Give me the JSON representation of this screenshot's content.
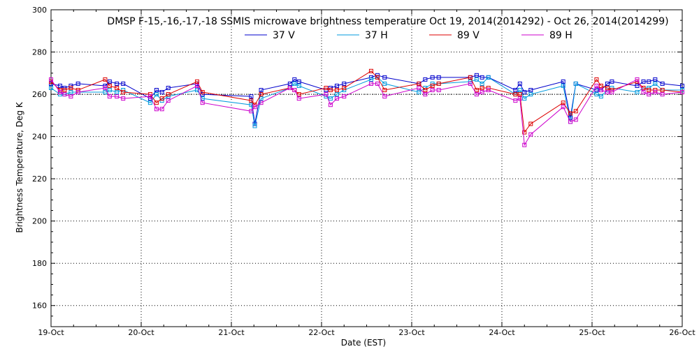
{
  "chart_data": {
    "type": "line",
    "title": "DMSP F-15,-16,-17,-18 SSMIS microwave brightness temperature Oct 19, 2014(2014292) - Oct 26, 2014(2014299)",
    "xlabel": "Date (EST)",
    "ylabel": "Brightness Temperature, Deg K",
    "xlim": [
      19,
      26
    ],
    "ylim": [
      150,
      300
    ],
    "x_tick_labels": [
      "19-Oct",
      "20-Oct",
      "21-Oct",
      "22-Oct",
      "23-Oct",
      "24-Oct",
      "25-Oct",
      "26-Oct"
    ],
    "y_ticks": [
      160,
      180,
      200,
      220,
      240,
      260,
      280,
      300
    ],
    "grid": true,
    "reference_line": 260,
    "series": [
      {
        "name": "37 V",
        "color": "#0000cc",
        "x": [
          19.0,
          19.1,
          19.15,
          19.22,
          19.3,
          19.6,
          19.65,
          19.73,
          19.8,
          20.1,
          20.17,
          20.23,
          20.3,
          20.62,
          20.68,
          21.22,
          21.26,
          21.33,
          21.65,
          21.7,
          21.75,
          22.05,
          22.1,
          22.17,
          22.25,
          22.55,
          22.62,
          22.7,
          23.08,
          23.15,
          23.23,
          23.3,
          23.65,
          23.72,
          23.78,
          23.85,
          24.15,
          24.2,
          24.25,
          24.32,
          24.68,
          24.76,
          24.82,
          25.05,
          25.1,
          25.17,
          25.22,
          25.5,
          25.57,
          25.63,
          25.7,
          25.78,
          26.0
        ],
        "values": [
          265,
          264,
          263,
          264,
          265,
          264,
          266,
          265,
          265,
          258,
          262,
          261,
          263,
          265,
          260,
          259,
          246,
          262,
          265,
          267,
          266,
          262,
          263,
          264,
          265,
          268,
          269,
          268,
          265,
          267,
          268,
          268,
          268,
          269,
          268,
          268,
          262,
          265,
          261,
          262,
          266,
          249,
          265,
          262,
          262,
          265,
          266,
          264,
          266,
          266,
          267,
          265,
          264
        ]
      },
      {
        "name": "37 H",
        "color": "#0099dd",
        "x": [
          19.0,
          19.1,
          19.15,
          19.22,
          19.3,
          19.6,
          19.65,
          19.73,
          19.8,
          20.1,
          20.17,
          20.23,
          20.3,
          20.62,
          20.68,
          21.22,
          21.26,
          21.33,
          21.65,
          21.7,
          21.75,
          22.05,
          22.1,
          22.17,
          22.25,
          22.55,
          22.62,
          22.7,
          23.08,
          23.15,
          23.23,
          23.3,
          23.65,
          23.72,
          23.78,
          23.85,
          24.15,
          24.2,
          24.25,
          24.32,
          24.68,
          24.76,
          24.82,
          25.05,
          25.1,
          25.17,
          25.22,
          25.5,
          25.57,
          25.63,
          25.7,
          25.78,
          26.0
        ],
        "values": [
          263,
          260,
          260,
          261,
          261,
          261,
          262,
          261,
          262,
          256,
          260,
          257,
          259,
          262,
          258,
          255,
          245,
          258,
          263,
          265,
          264,
          259,
          258,
          260,
          262,
          267,
          268,
          265,
          261,
          263,
          265,
          265,
          266,
          267,
          265,
          268,
          260,
          262,
          258,
          260,
          264,
          247,
          265,
          260,
          259,
          262,
          263,
          261,
          263,
          263,
          265,
          262,
          262
        ]
      },
      {
        "name": "89 V",
        "color": "#dd0000",
        "x": [
          19.0,
          19.1,
          19.15,
          19.22,
          19.3,
          19.6,
          19.65,
          19.73,
          19.8,
          20.1,
          20.17,
          20.23,
          20.3,
          20.62,
          20.68,
          21.22,
          21.26,
          21.33,
          21.65,
          21.7,
          21.75,
          22.05,
          22.1,
          22.17,
          22.25,
          22.55,
          22.62,
          22.7,
          23.08,
          23.15,
          23.23,
          23.3,
          23.65,
          23.72,
          23.78,
          23.85,
          24.15,
          24.2,
          24.25,
          24.32,
          24.68,
          24.76,
          24.82,
          25.05,
          25.1,
          25.17,
          25.22,
          25.5,
          25.57,
          25.63,
          25.7,
          25.78,
          26.0
        ],
        "values": [
          266,
          262,
          262,
          263,
          262,
          267,
          264,
          263,
          261,
          260,
          256,
          258,
          260,
          266,
          261,
          257,
          255,
          260,
          263,
          262,
          260,
          263,
          262,
          262,
          263,
          271,
          268,
          262,
          265,
          262,
          264,
          265,
          268,
          262,
          263,
          263,
          260,
          260,
          242,
          246,
          256,
          251,
          252,
          267,
          264,
          263,
          262,
          266,
          263,
          262,
          262,
          262,
          261
        ]
      },
      {
        "name": "89 H",
        "color": "#cc00cc",
        "x": [
          19.0,
          19.1,
          19.15,
          19.22,
          19.3,
          19.6,
          19.65,
          19.73,
          19.8,
          20.1,
          20.17,
          20.23,
          20.3,
          20.62,
          20.68,
          21.22,
          21.26,
          21.33,
          21.65,
          21.7,
          21.75,
          22.05,
          22.1,
          22.17,
          22.25,
          22.55,
          22.62,
          22.7,
          23.08,
          23.15,
          23.23,
          23.3,
          23.65,
          23.72,
          23.78,
          23.85,
          24.15,
          24.2,
          24.25,
          24.32,
          24.68,
          24.76,
          24.82,
          25.05,
          25.1,
          25.17,
          25.22,
          25.5,
          25.57,
          25.63,
          25.7,
          25.78,
          26.0
        ],
        "values": [
          267,
          261,
          260,
          259,
          261,
          263,
          259,
          259,
          258,
          259,
          253,
          253,
          257,
          264,
          256,
          252,
          254,
          256,
          263,
          262,
          258,
          260,
          255,
          258,
          259,
          265,
          265,
          259,
          263,
          260,
          262,
          262,
          265,
          260,
          261,
          262,
          257,
          258,
          236,
          241,
          254,
          247,
          248,
          264,
          262,
          261,
          261,
          267,
          261,
          260,
          261,
          260,
          261
        ]
      }
    ]
  }
}
